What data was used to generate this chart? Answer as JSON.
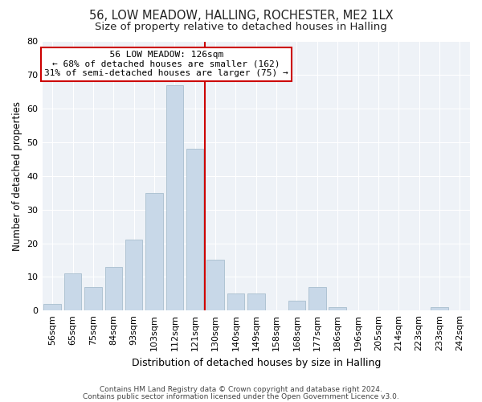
{
  "title": "56, LOW MEADOW, HALLING, ROCHESTER, ME2 1LX",
  "subtitle": "Size of property relative to detached houses in Halling",
  "xlabel": "Distribution of detached houses by size in Halling",
  "ylabel": "Number of detached properties",
  "bin_labels": [
    "56sqm",
    "65sqm",
    "75sqm",
    "84sqm",
    "93sqm",
    "103sqm",
    "112sqm",
    "121sqm",
    "130sqm",
    "140sqm",
    "149sqm",
    "158sqm",
    "168sqm",
    "177sqm",
    "186sqm",
    "196sqm",
    "205sqm",
    "214sqm",
    "223sqm",
    "233sqm",
    "242sqm"
  ],
  "bar_heights": [
    2,
    11,
    7,
    13,
    21,
    35,
    67,
    48,
    15,
    5,
    5,
    0,
    3,
    7,
    1,
    0,
    0,
    0,
    0,
    1,
    0
  ],
  "bar_color": "#c8d8e8",
  "bar_edge_color": "#a8bece",
  "vline_x": 7.5,
  "vline_color": "#cc0000",
  "annotation_title": "56 LOW MEADOW: 126sqm",
  "annotation_line1": "← 68% of detached houses are smaller (162)",
  "annotation_line2": "31% of semi-detached houses are larger (75) →",
  "annotation_box_facecolor": "#ffffff",
  "annotation_box_edgecolor": "#cc0000",
  "ylim": [
    0,
    80
  ],
  "yticks": [
    0,
    10,
    20,
    30,
    40,
    50,
    60,
    70,
    80
  ],
  "footer_line1": "Contains HM Land Registry data © Crown copyright and database right 2024.",
  "footer_line2": "Contains public sector information licensed under the Open Government Licence v3.0.",
  "background_color": "#ffffff",
  "plot_bg_color": "#eef2f7",
  "grid_color": "#ffffff",
  "title_fontsize": 10.5,
  "subtitle_fontsize": 9.5,
  "ylabel_fontsize": 8.5,
  "xlabel_fontsize": 9,
  "tick_fontsize": 8,
  "annotation_fontsize": 8,
  "footer_fontsize": 6.5
}
